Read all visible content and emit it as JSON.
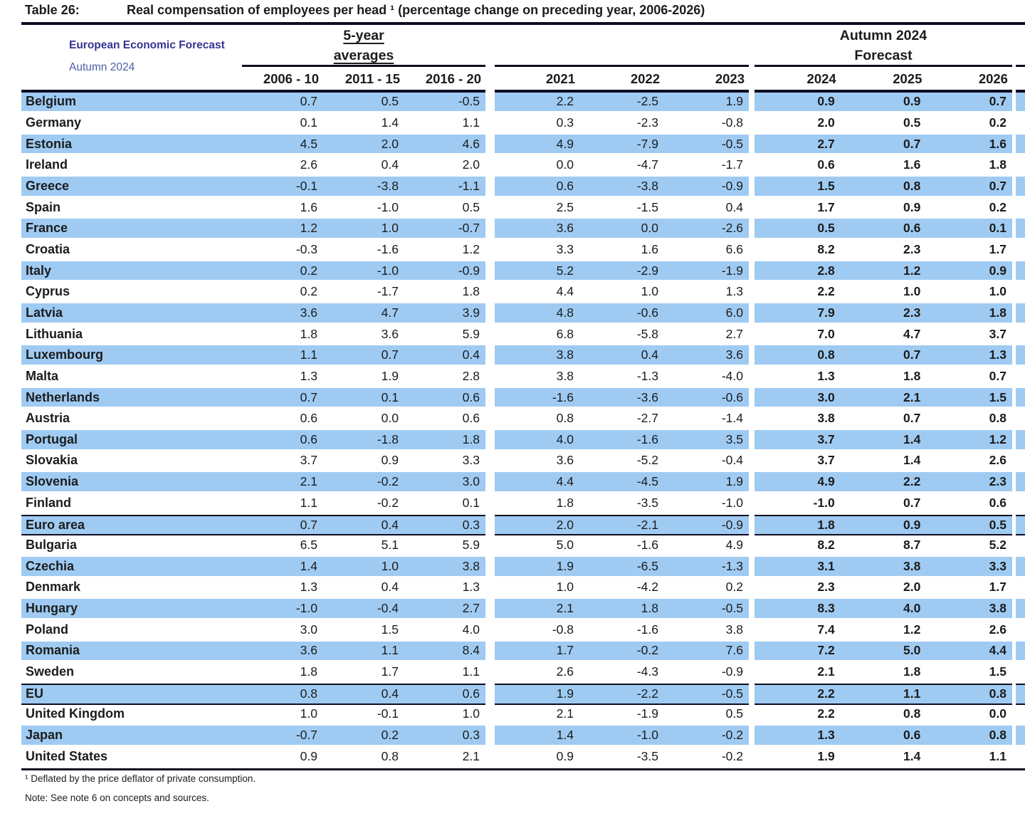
{
  "title_bar": {
    "label": "Table 26:",
    "title": "Real compensation of employees per head ¹ (percentage change on preceding year, 2006-2026)"
  },
  "brand": {
    "title": "European Economic Forecast",
    "edition": "Autumn 2024"
  },
  "column_groups": {
    "averages_line1": "5-year",
    "averages_line2": "averages",
    "forecast_line1": "Autumn 2024",
    "forecast_line2": "Forecast"
  },
  "columns": [
    "2006 - 10",
    "2011 - 15",
    "2016 - 20",
    "2021",
    "2022",
    "2023",
    "2024",
    "2025",
    "2026"
  ],
  "forecast_start_index": 6,
  "rows": [
    {
      "name": "Belgium",
      "emphasis": false,
      "values": [
        "0.7",
        "0.5",
        "-0.5",
        "2.2",
        "-2.5",
        "1.9",
        "0.9",
        "0.9",
        "0.7"
      ]
    },
    {
      "name": "Germany",
      "emphasis": false,
      "values": [
        "0.1",
        "1.4",
        "1.1",
        "0.3",
        "-2.3",
        "-0.8",
        "2.0",
        "0.5",
        "0.2"
      ]
    },
    {
      "name": "Estonia",
      "emphasis": false,
      "values": [
        "4.5",
        "2.0",
        "4.6",
        "4.9",
        "-7.9",
        "-0.5",
        "2.7",
        "0.7",
        "1.6"
      ]
    },
    {
      "name": "Ireland",
      "emphasis": false,
      "values": [
        "2.6",
        "0.4",
        "2.0",
        "0.0",
        "-4.7",
        "-1.7",
        "0.6",
        "1.6",
        "1.8"
      ]
    },
    {
      "name": "Greece",
      "emphasis": false,
      "values": [
        "-0.1",
        "-3.8",
        "-1.1",
        "0.6",
        "-3.8",
        "-0.9",
        "1.5",
        "0.8",
        "0.7"
      ]
    },
    {
      "name": "Spain",
      "emphasis": false,
      "values": [
        "1.6",
        "-1.0",
        "0.5",
        "2.5",
        "-1.5",
        "0.4",
        "1.7",
        "0.9",
        "0.2"
      ]
    },
    {
      "name": "France",
      "emphasis": false,
      "values": [
        "1.2",
        "1.0",
        "-0.7",
        "3.6",
        "0.0",
        "-2.6",
        "0.5",
        "0.6",
        "0.1"
      ]
    },
    {
      "name": "Croatia",
      "emphasis": false,
      "values": [
        "-0.3",
        "-1.6",
        "1.2",
        "3.3",
        "1.6",
        "6.6",
        "8.2",
        "2.3",
        "1.7"
      ]
    },
    {
      "name": "Italy",
      "emphasis": false,
      "values": [
        "0.2",
        "-1.0",
        "-0.9",
        "5.2",
        "-2.9",
        "-1.9",
        "2.8",
        "1.2",
        "0.9"
      ]
    },
    {
      "name": "Cyprus",
      "emphasis": false,
      "values": [
        "0.2",
        "-1.7",
        "1.8",
        "4.4",
        "1.0",
        "1.3",
        "2.2",
        "1.0",
        "1.0"
      ]
    },
    {
      "name": "Latvia",
      "emphasis": false,
      "values": [
        "3.6",
        "4.7",
        "3.9",
        "4.8",
        "-0.6",
        "6.0",
        "7.9",
        "2.3",
        "1.8"
      ]
    },
    {
      "name": "Lithuania",
      "emphasis": false,
      "values": [
        "1.8",
        "3.6",
        "5.9",
        "6.8",
        "-5.8",
        "2.7",
        "7.0",
        "4.7",
        "3.7"
      ]
    },
    {
      "name": "Luxembourg",
      "emphasis": false,
      "values": [
        "1.1",
        "0.7",
        "0.4",
        "3.8",
        "0.4",
        "3.6",
        "0.8",
        "0.7",
        "1.3"
      ]
    },
    {
      "name": "Malta",
      "emphasis": false,
      "values": [
        "1.3",
        "1.9",
        "2.8",
        "3.8",
        "-1.3",
        "-4.0",
        "1.3",
        "1.8",
        "0.7"
      ]
    },
    {
      "name": "Netherlands",
      "emphasis": false,
      "values": [
        "0.7",
        "0.1",
        "0.6",
        "-1.6",
        "-3.6",
        "-0.6",
        "3.0",
        "2.1",
        "1.5"
      ]
    },
    {
      "name": "Austria",
      "emphasis": false,
      "values": [
        "0.6",
        "0.0",
        "0.6",
        "0.8",
        "-2.7",
        "-1.4",
        "3.8",
        "0.7",
        "0.8"
      ]
    },
    {
      "name": "Portugal",
      "emphasis": false,
      "values": [
        "0.6",
        "-1.8",
        "1.8",
        "4.0",
        "-1.6",
        "3.5",
        "3.7",
        "1.4",
        "1.2"
      ]
    },
    {
      "name": "Slovakia",
      "emphasis": false,
      "values": [
        "3.7",
        "0.9",
        "3.3",
        "3.6",
        "-5.2",
        "-0.4",
        "3.7",
        "1.4",
        "2.6"
      ]
    },
    {
      "name": "Slovenia",
      "emphasis": false,
      "values": [
        "2.1",
        "-0.2",
        "3.0",
        "4.4",
        "-4.5",
        "1.9",
        "4.9",
        "2.2",
        "2.3"
      ]
    },
    {
      "name": "Finland",
      "emphasis": false,
      "values": [
        "1.1",
        "-0.2",
        "0.1",
        "1.8",
        "-3.5",
        "-1.0",
        "-1.0",
        "0.7",
        "0.6"
      ]
    },
    {
      "name": "Euro area",
      "emphasis": true,
      "values": [
        "0.7",
        "0.4",
        "0.3",
        "2.0",
        "-2.1",
        "-0.9",
        "1.8",
        "0.9",
        "0.5"
      ]
    },
    {
      "name": "Bulgaria",
      "emphasis": false,
      "values": [
        "6.5",
        "5.1",
        "5.9",
        "5.0",
        "-1.6",
        "4.9",
        "8.2",
        "8.7",
        "5.2"
      ]
    },
    {
      "name": "Czechia",
      "emphasis": false,
      "values": [
        "1.4",
        "1.0",
        "3.8",
        "1.9",
        "-6.5",
        "-1.3",
        "3.1",
        "3.8",
        "3.3"
      ]
    },
    {
      "name": "Denmark",
      "emphasis": false,
      "values": [
        "1.3",
        "0.4",
        "1.3",
        "1.0",
        "-4.2",
        "0.2",
        "2.3",
        "2.0",
        "1.7"
      ]
    },
    {
      "name": "Hungary",
      "emphasis": false,
      "values": [
        "-1.0",
        "-0.4",
        "2.7",
        "2.1",
        "1.8",
        "-0.5",
        "8.3",
        "4.0",
        "3.8"
      ]
    },
    {
      "name": "Poland",
      "emphasis": false,
      "values": [
        "3.0",
        "1.5",
        "4.0",
        "-0.8",
        "-1.6",
        "3.8",
        "7.4",
        "1.2",
        "2.6"
      ]
    },
    {
      "name": "Romania",
      "emphasis": false,
      "values": [
        "3.6",
        "1.1",
        "8.4",
        "1.7",
        "-0.2",
        "7.6",
        "7.2",
        "5.0",
        "4.4"
      ]
    },
    {
      "name": "Sweden",
      "emphasis": false,
      "values": [
        "1.8",
        "1.7",
        "1.1",
        "2.6",
        "-4.3",
        "-0.9",
        "2.1",
        "1.8",
        "1.5"
      ]
    },
    {
      "name": "EU",
      "emphasis": true,
      "values": [
        "0.8",
        "0.4",
        "0.6",
        "1.9",
        "-2.2",
        "-0.5",
        "2.2",
        "1.1",
        "0.8"
      ]
    },
    {
      "name": "United Kingdom",
      "emphasis": false,
      "values": [
        "1.0",
        "-0.1",
        "1.0",
        "2.1",
        "-1.9",
        "0.5",
        "2.2",
        "0.8",
        "0.0"
      ]
    },
    {
      "name": "Japan",
      "emphasis": false,
      "values": [
        "-0.7",
        "0.2",
        "0.3",
        "1.4",
        "-1.0",
        "-0.2",
        "1.3",
        "0.6",
        "0.8"
      ]
    },
    {
      "name": "United States",
      "emphasis": false,
      "values": [
        "0.9",
        "0.8",
        "2.1",
        "0.9",
        "-3.5",
        "-0.2",
        "1.9",
        "1.4",
        "1.1"
      ]
    }
  ],
  "footnotes": {
    "footnote": "¹ Deflated by the price deflator of private consumption.",
    "note": "Note: See note 6 on concepts and sources."
  },
  "colors": {
    "row_highlight": "#9fcbf3",
    "rule": "#0d0d21",
    "text": "#1c1c1c",
    "brand_title": "#343493",
    "brand_edition": "#4e5ea6"
  }
}
